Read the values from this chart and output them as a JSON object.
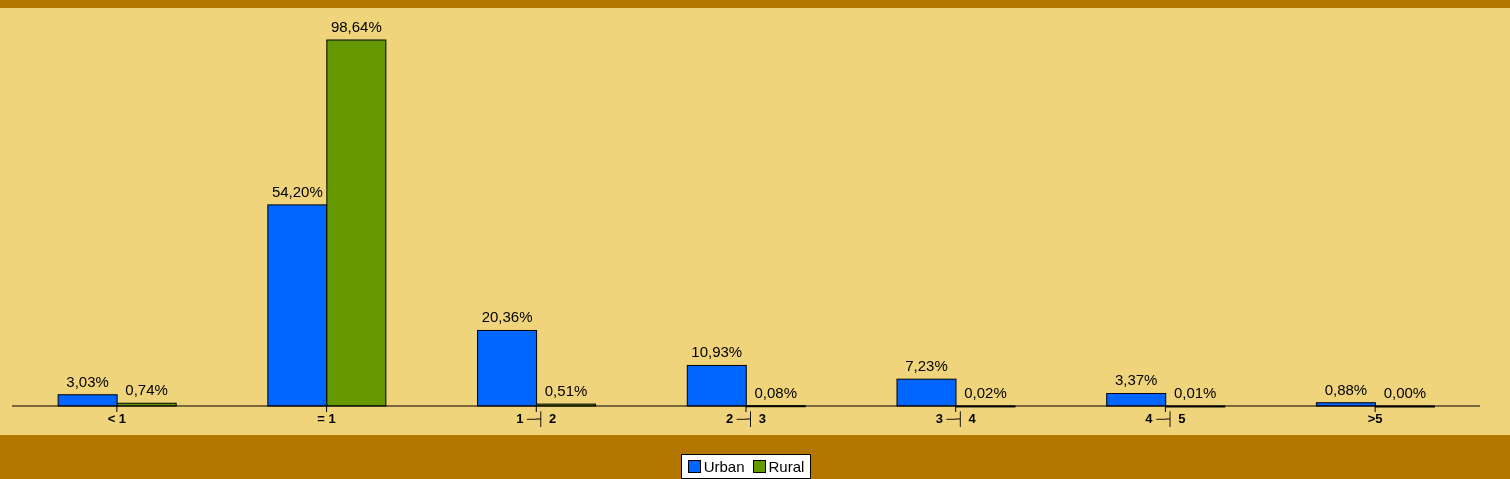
{
  "chart_data": {
    "type": "bar",
    "categories": [
      "< 1",
      "= 1",
      "1 ─┤ 2",
      "2 ─┤ 3",
      "3 ─┤ 4",
      "4 ─┤ 5",
      ">5"
    ],
    "series": [
      {
        "name": "Urban",
        "color": "#0066ff",
        "values": [
          3.03,
          54.2,
          20.36,
          10.93,
          7.23,
          3.37,
          0.88
        ],
        "value_labels": [
          "3,03%",
          "54,20%",
          "20,36%",
          "10,93%",
          "7,23%",
          "3,37%",
          "0,88%"
        ]
      },
      {
        "name": "Rural",
        "color": "#669900",
        "values": [
          0.74,
          98.64,
          0.51,
          0.08,
          0.02,
          0.01,
          0.0
        ],
        "value_labels": [
          "0,74%",
          "98,64%",
          "0,51%",
          "0,08%",
          "0,02%",
          "0,01%",
          "0,00%"
        ]
      }
    ],
    "legend": "bottom",
    "grid": false
  }
}
